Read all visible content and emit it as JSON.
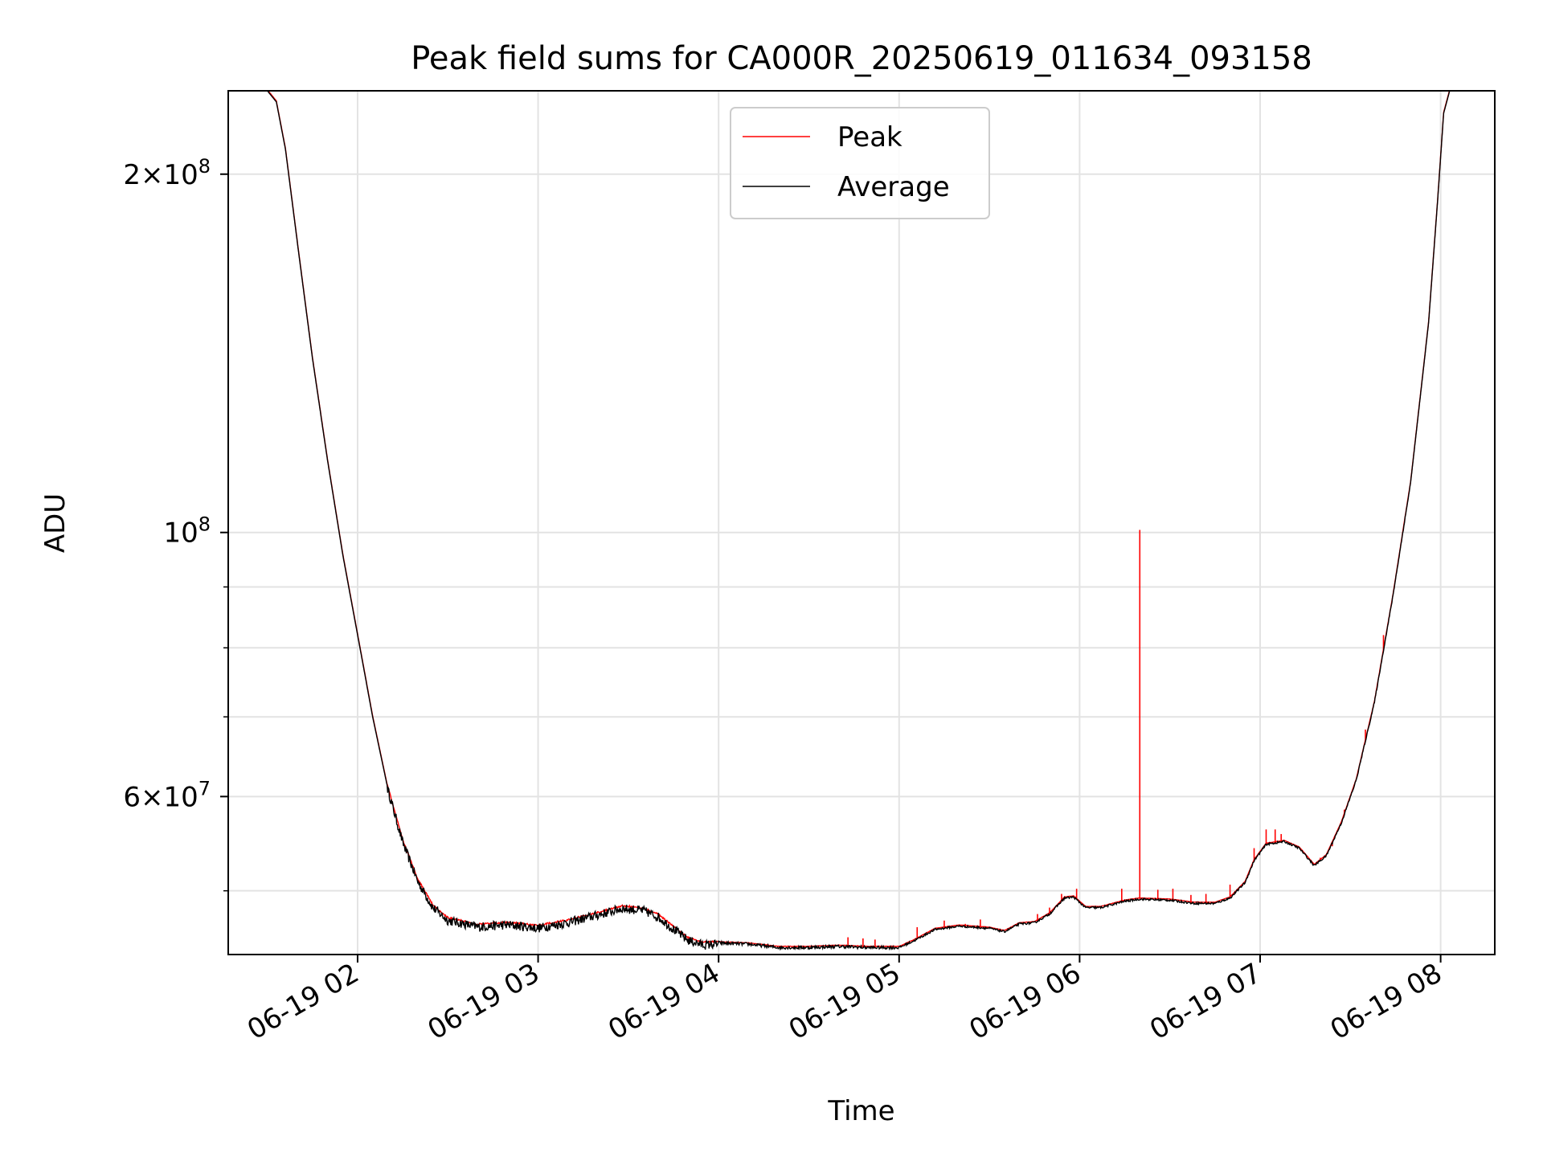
{
  "chart_data": {
    "type": "line",
    "title": "Peak field sums for CA000R_20250619_011634_093158",
    "xlabel": "Time",
    "ylabel": "ADU",
    "yscale": "log",
    "grid": true,
    "legend_placement": "top-center",
    "xlim": [
      "06-19 01:17",
      "06-19 08:18"
    ],
    "ylim": [
      44200000,
      235000000
    ],
    "x_ticks": [
      {
        "at": "06-19 02:00",
        "label": "06-19 02"
      },
      {
        "at": "06-19 03:00",
        "label": "06-19 03"
      },
      {
        "at": "06-19 04:00",
        "label": "06-19 04"
      },
      {
        "at": "06-19 05:00",
        "label": "06-19 05"
      },
      {
        "at": "06-19 06:00",
        "label": "06-19 06"
      },
      {
        "at": "06-19 07:00",
        "label": "06-19 07"
      },
      {
        "at": "06-19 08:00",
        "label": "06-19 08"
      }
    ],
    "y_ticks": [
      {
        "value": 200000000,
        "mant": "2",
        "times": "×",
        "base": "10",
        "exp": "8"
      },
      {
        "value": 100000000,
        "mant": "",
        "times": "",
        "base": "10",
        "exp": "8"
      },
      {
        "value": 60000000,
        "mant": "6",
        "times": "×",
        "base": "10",
        "exp": "7"
      }
    ],
    "y_minor_ticks": [
      50000000,
      70000000,
      80000000,
      90000000
    ],
    "series": [
      {
        "name": "Peak",
        "color": "#ff0000"
      },
      {
        "name": "Average",
        "color": "#000000"
      }
    ],
    "average_curve": [
      [
        "06-19 01:17",
        235000000
      ],
      [
        "06-19 01:30",
        235000000
      ],
      [
        "06-19 01:33",
        230000000
      ],
      [
        "06-19 01:36",
        210000000
      ],
      [
        "06-19 01:40",
        175000000
      ],
      [
        "06-19 01:45",
        140000000
      ],
      [
        "06-19 01:50",
        115000000
      ],
      [
        "06-19 01:55",
        96000000
      ],
      [
        "06-19 02:00",
        82000000
      ],
      [
        "06-19 02:05",
        70000000
      ],
      [
        "06-19 02:10",
        61000000
      ],
      [
        "06-19 02:15",
        55000000
      ],
      [
        "06-19 02:20",
        51000000
      ],
      [
        "06-19 02:25",
        48500000
      ],
      [
        "06-19 02:30",
        47300000
      ],
      [
        "06-19 02:40",
        46700000
      ],
      [
        "06-19 02:50",
        46900000
      ],
      [
        "06-19 03:00",
        46600000
      ],
      [
        "06-19 03:10",
        47100000
      ],
      [
        "06-19 03:20",
        47800000
      ],
      [
        "06-19 03:28",
        48400000
      ],
      [
        "06-19 03:35",
        48200000
      ],
      [
        "06-19 03:40",
        47600000
      ],
      [
        "06-19 03:45",
        46500000
      ],
      [
        "06-19 03:50",
        45500000
      ],
      [
        "06-19 03:55",
        45100000
      ],
      [
        "06-19 04:00",
        45200000
      ],
      [
        "06-19 04:10",
        45100000
      ],
      [
        "06-19 04:20",
        44800000
      ],
      [
        "06-19 04:30",
        44800000
      ],
      [
        "06-19 04:40",
        44900000
      ],
      [
        "06-19 04:50",
        44800000
      ],
      [
        "06-19 05:00",
        44800000
      ],
      [
        "06-19 05:05",
        45400000
      ],
      [
        "06-19 05:12",
        46400000
      ],
      [
        "06-19 05:20",
        46700000
      ],
      [
        "06-19 05:30",
        46500000
      ],
      [
        "06-19 05:35",
        46200000
      ],
      [
        "06-19 05:40",
        46900000
      ],
      [
        "06-19 05:45",
        47000000
      ],
      [
        "06-19 05:50",
        47800000
      ],
      [
        "06-19 05:55",
        49300000
      ],
      [
        "06-19 05:58",
        49400000
      ],
      [
        "06-19 06:02",
        48400000
      ],
      [
        "06-19 06:07",
        48400000
      ],
      [
        "06-19 06:15",
        49000000
      ],
      [
        "06-19 06:20",
        49200000
      ],
      [
        "06-19 06:30",
        49100000
      ],
      [
        "06-19 06:38",
        48800000
      ],
      [
        "06-19 06:45",
        48800000
      ],
      [
        "06-19 06:50",
        49300000
      ],
      [
        "06-19 06:55",
        50800000
      ],
      [
        "06-19 06:58",
        53000000
      ],
      [
        "06-19 07:02",
        54700000
      ],
      [
        "06-19 07:08",
        55000000
      ],
      [
        "06-19 07:13",
        54300000
      ],
      [
        "06-19 07:18",
        52500000
      ],
      [
        "06-19 07:22",
        53500000
      ],
      [
        "06-19 07:27",
        57000000
      ],
      [
        "06-19 07:32",
        62000000
      ],
      [
        "06-19 07:38",
        72000000
      ],
      [
        "06-19 07:44",
        88000000
      ],
      [
        "06-19 07:50",
        110000000
      ],
      [
        "06-19 07:56",
        150000000
      ],
      [
        "06-19 07:59",
        190000000
      ],
      [
        "06-19 08:01",
        225000000
      ],
      [
        "06-19 08:03",
        235000000
      ],
      [
        "06-19 08:18",
        235000000
      ]
    ],
    "peak_spikes": [
      [
        "06-19 04:43",
        45700000
      ],
      [
        "06-19 04:48",
        45600000
      ],
      [
        "06-19 04:52",
        45500000
      ],
      [
        "06-19 05:06",
        46600000
      ],
      [
        "06-19 05:15",
        47200000
      ],
      [
        "06-19 05:22",
        46900000
      ],
      [
        "06-19 05:27",
        47300000
      ],
      [
        "06-19 05:46",
        47800000
      ],
      [
        "06-19 05:50",
        48400000
      ],
      [
        "06-19 05:54",
        49700000
      ],
      [
        "06-19 05:59",
        50200000
      ],
      [
        "06-19 06:14",
        50200000
      ],
      [
        "06-19 06:20",
        100500000
      ],
      [
        "06-19 06:26",
        50100000
      ],
      [
        "06-19 06:31",
        50200000
      ],
      [
        "06-19 06:37",
        49600000
      ],
      [
        "06-19 06:42",
        49700000
      ],
      [
        "06-19 06:50",
        50600000
      ],
      [
        "06-19 06:58",
        54300000
      ],
      [
        "06-19 07:02",
        56300000
      ],
      [
        "06-19 07:05",
        56300000
      ],
      [
        "06-19 07:07",
        55800000
      ],
      [
        "06-19 07:20",
        53300000
      ],
      [
        "06-19 07:24",
        54500000
      ],
      [
        "06-19 07:28",
        58500000
      ],
      [
        "06-19 07:35",
        68300000
      ],
      [
        "06-19 07:41",
        82000000
      ]
    ]
  }
}
